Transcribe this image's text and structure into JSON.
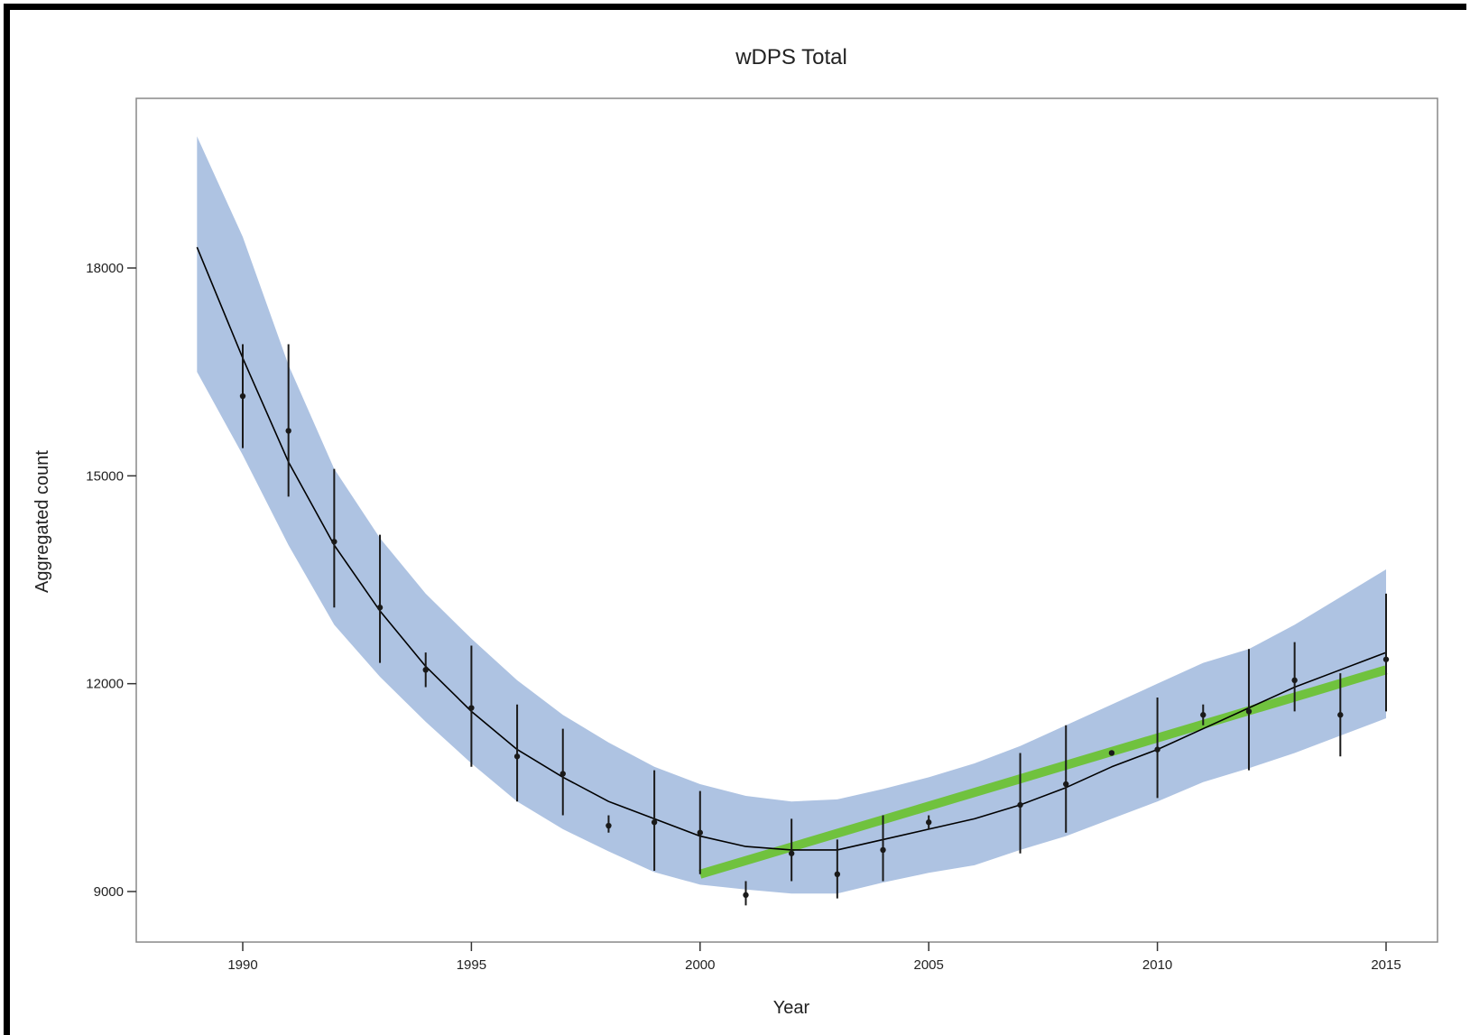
{
  "chart_data": {
    "type": "line",
    "title": "wDPS Total",
    "xlabel": "Year",
    "ylabel": "Aggregated count",
    "xlim": [
      1987.7,
      2015.7
    ],
    "ylim": [
      8300,
      20600
    ],
    "xticks": [
      1990,
      1995,
      2000,
      2005,
      2010,
      2015
    ],
    "yticks": [
      9000,
      12000,
      15000,
      18000
    ],
    "grid": false,
    "colors": {
      "band": "#aec3e2",
      "trend": "#70c23e",
      "fit": "#000000",
      "points": "#1a1a1a",
      "axes": "#888888"
    },
    "confidence_band": {
      "x": [
        1989,
        1990,
        1991,
        1992,
        1993,
        1994,
        1995,
        1996,
        1997,
        1998,
        1999,
        2000,
        2001,
        2002,
        2003,
        2004,
        2005,
        2006,
        2007,
        2008,
        2009,
        2010,
        2011,
        2012,
        2013,
        2014,
        2015
      ],
      "lower": [
        16500,
        15300,
        14000,
        12850,
        12100,
        11450,
        10850,
        10300,
        9900,
        9580,
        9280,
        9100,
        9030,
        8970,
        8970,
        9130,
        9270,
        9380,
        9600,
        9800,
        10050,
        10300,
        10580,
        10780,
        11000,
        11250,
        11500
      ],
      "upper": [
        19900,
        18450,
        16600,
        15100,
        14100,
        13300,
        12650,
        12050,
        11550,
        11150,
        10800,
        10550,
        10380,
        10300,
        10330,
        10480,
        10650,
        10850,
        11100,
        11400,
        11700,
        12000,
        12300,
        12500,
        12850,
        13250,
        13650
      ]
    },
    "fit_line": {
      "x": [
        1989,
        1990,
        1991,
        1992,
        1993,
        1994,
        1995,
        1996,
        1997,
        1998,
        1999,
        2000,
        2001,
        2002,
        2003,
        2004,
        2005,
        2006,
        2007,
        2008,
        2009,
        2010,
        2011,
        2012,
        2013,
        2014,
        2015
      ],
      "y": [
        18300,
        16700,
        15200,
        14000,
        13050,
        12250,
        11600,
        11050,
        10650,
        10300,
        10050,
        9800,
        9650,
        9600,
        9600,
        9750,
        9900,
        10050,
        10250,
        10500,
        10800,
        11050,
        11350,
        11650,
        11950,
        12200,
        12450
      ]
    },
    "trend_line": {
      "x": [
        2000,
        2015
      ],
      "y": [
        9250,
        12200
      ]
    },
    "observations": [
      {
        "x": 1990,
        "y": 16150,
        "low": 15400,
        "high": 16900
      },
      {
        "x": 1991,
        "y": 15650,
        "low": 14700,
        "high": 16900
      },
      {
        "x": 1992,
        "y": 14050,
        "low": 13100,
        "high": 15100
      },
      {
        "x": 1993,
        "y": 13100,
        "low": 12300,
        "high": 14150
      },
      {
        "x": 1994,
        "y": 12200,
        "low": 11950,
        "high": 12450
      },
      {
        "x": 1995,
        "y": 11650,
        "low": 10800,
        "high": 12550
      },
      {
        "x": 1996,
        "y": 10950,
        "low": 10300,
        "high": 11700
      },
      {
        "x": 1997,
        "y": 10700,
        "low": 10100,
        "high": 11350
      },
      {
        "x": 1998,
        "y": 9950,
        "low": 9850,
        "high": 10100
      },
      {
        "x": 1999,
        "y": 10000,
        "low": 9300,
        "high": 10750
      },
      {
        "x": 2000,
        "y": 9850,
        "low": 9250,
        "high": 10450
      },
      {
        "x": 2001,
        "y": 8950,
        "low": 8800,
        "high": 9150
      },
      {
        "x": 2002,
        "y": 9550,
        "low": 9150,
        "high": 10050
      },
      {
        "x": 2003,
        "y": 9250,
        "low": 8900,
        "high": 9750
      },
      {
        "x": 2004,
        "y": 9600,
        "low": 9150,
        "high": 10100
      },
      {
        "x": 2005,
        "y": 10000,
        "low": 9900,
        "high": 10100
      },
      {
        "x": 2007,
        "y": 10250,
        "low": 9550,
        "high": 11000
      },
      {
        "x": 2008,
        "y": 10550,
        "low": 9850,
        "high": 11400
      },
      {
        "x": 2009,
        "y": 11000,
        "low": 11000,
        "high": 11000
      },
      {
        "x": 2010,
        "y": 11050,
        "low": 10350,
        "high": 11800
      },
      {
        "x": 2011,
        "y": 11550,
        "low": 11400,
        "high": 11700
      },
      {
        "x": 2012,
        "y": 11600,
        "low": 10750,
        "high": 12500
      },
      {
        "x": 2013,
        "y": 12050,
        "low": 11600,
        "high": 12600
      },
      {
        "x": 2014,
        "y": 11550,
        "low": 10950,
        "high": 12150
      },
      {
        "x": 2015,
        "y": 12350,
        "low": 11600,
        "high": 13300
      }
    ]
  }
}
